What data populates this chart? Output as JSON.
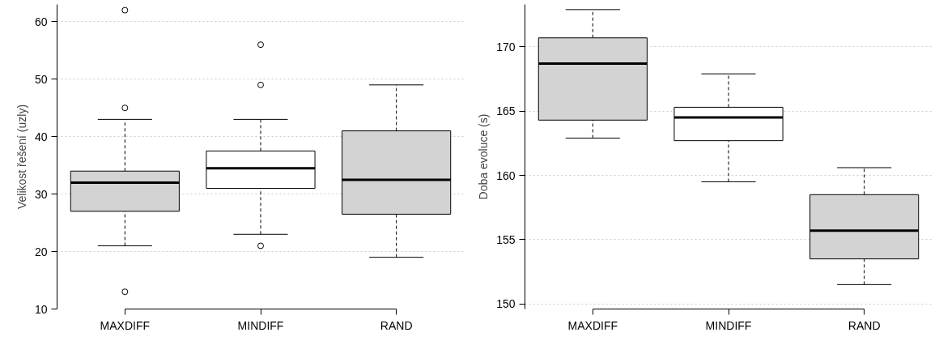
{
  "chart_data": [
    {
      "type": "box",
      "ylabel": "Velikost řešení (uzly)",
      "categories": [
        "MAXDIFF",
        "MINDIFF",
        "RAND"
      ],
      "colors": [
        "#d3d3d3",
        "#ffffff",
        "#d3d3d3"
      ],
      "boxes": [
        {
          "low": 21,
          "q1": 27,
          "median": 32,
          "q3": 34,
          "high": 43,
          "outliers": [
            62,
            45,
            13
          ]
        },
        {
          "low": 23,
          "q1": 31,
          "median": 34.5,
          "q3": 37.5,
          "high": 43,
          "outliers": [
            56,
            49,
            21
          ]
        },
        {
          "low": 19,
          "q1": 26.5,
          "median": 32.5,
          "q3": 41,
          "high": 49
        }
      ],
      "ylim": [
        10,
        63
      ],
      "yticks": [
        10,
        20,
        30,
        40,
        50,
        60
      ],
      "grid": "y",
      "marker": "circle"
    },
    {
      "type": "box",
      "ylabel": "Doba evoluce (s)",
      "categories": [
        "MAXDIFF",
        "MINDIFF",
        "RAND"
      ],
      "colors": [
        "#d3d3d3",
        "#ffffff",
        "#d3d3d3"
      ],
      "boxes": [
        {
          "low": 162.9,
          "q1": 164.3,
          "median": 168.7,
          "q3": 170.7,
          "high": 172.9
        },
        {
          "low": 159.5,
          "q1": 162.7,
          "median": 164.5,
          "q3": 165.3,
          "high": 167.9
        },
        {
          "low": 151.5,
          "q1": 153.5,
          "median": 155.7,
          "q3": 158.5,
          "high": 160.6
        }
      ],
      "ylim": [
        149.6,
        173.3
      ],
      "yticks": [
        150,
        155,
        160,
        165,
        170
      ],
      "grid": "y"
    }
  ]
}
